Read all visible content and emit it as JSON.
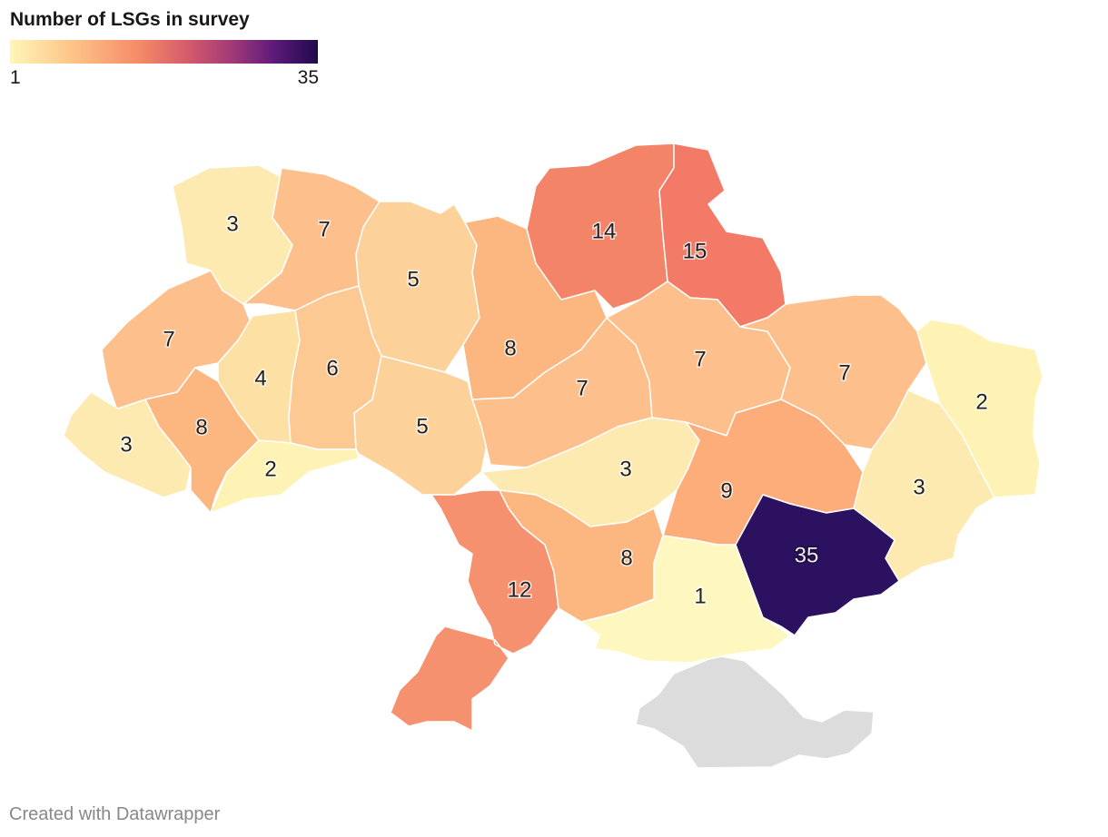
{
  "legend": {
    "title": "Number of LSGs in survey",
    "min_label": "1",
    "max_label": "35",
    "colors": [
      "#fef6b8",
      "#fdbf85",
      "#f58a68",
      "#d45a6a",
      "#a23a78",
      "#5c1a7a",
      "#1f0a4a"
    ]
  },
  "nodata_color": "#dcdcdc",
  "regions": [
    {
      "id": "volyn",
      "value": 3,
      "color": "#fdeab0"
    },
    {
      "id": "rivne",
      "value": 7,
      "color": "#fdc08c"
    },
    {
      "id": "zhytomyr",
      "value": 5,
      "color": "#fdd29a"
    },
    {
      "id": "kyiv",
      "value": 8,
      "color": "#fcb680"
    },
    {
      "id": "chernihiv",
      "value": 14,
      "color": "#f48468"
    },
    {
      "id": "sumy",
      "value": 15,
      "color": "#f27a66"
    },
    {
      "id": "lviv",
      "value": 7,
      "color": "#fdc08c"
    },
    {
      "id": "ternopil",
      "value": 4,
      "color": "#fde0a4"
    },
    {
      "id": "khmelnytskyi",
      "value": 6,
      "color": "#fdc992"
    },
    {
      "id": "vinnytsia",
      "value": 5,
      "color": "#fdd29a"
    },
    {
      "id": "cherkasy",
      "value": 7,
      "color": "#fdc08c"
    },
    {
      "id": "poltava",
      "value": 7,
      "color": "#fdc08c"
    },
    {
      "id": "kharkiv",
      "value": 7,
      "color": "#fdc08c"
    },
    {
      "id": "luhansk",
      "value": 2,
      "color": "#fef3b4"
    },
    {
      "id": "zakarpattia",
      "value": 3,
      "color": "#fdeab0"
    },
    {
      "id": "ivano-frankivsk",
      "value": 8,
      "color": "#fcb680"
    },
    {
      "id": "chernivtsi",
      "value": 2,
      "color": "#fef3b4"
    },
    {
      "id": "kirovohrad",
      "value": 3,
      "color": "#fdeab0"
    },
    {
      "id": "dnipropetrovsk",
      "value": 9,
      "color": "#fcad7a"
    },
    {
      "id": "donetsk",
      "value": 3,
      "color": "#fdeab0"
    },
    {
      "id": "odesa",
      "value": 12,
      "color": "#f69170"
    },
    {
      "id": "mykolaiv",
      "value": 8,
      "color": "#fcb680"
    },
    {
      "id": "kherson",
      "value": 1,
      "color": "#fef8c0"
    },
    {
      "id": "zaporizhzhia",
      "value": 35,
      "color": "#2c1160"
    }
  ],
  "footer": {
    "credit": "Created with Datawrapper"
  }
}
